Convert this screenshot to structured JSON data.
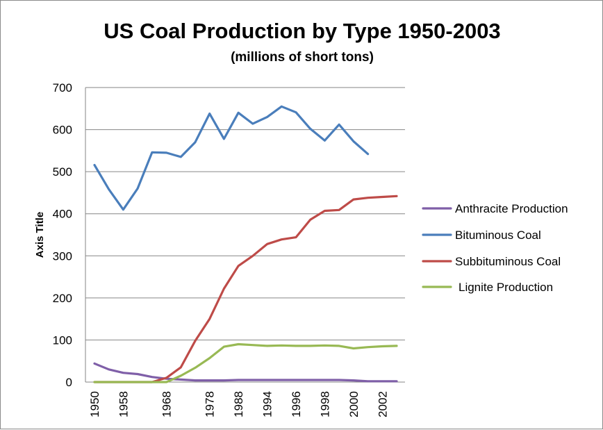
{
  "chart_data": {
    "type": "line",
    "title": "US Coal Production by Type 1950-2003",
    "subtitle": "(millions of short tons)",
    "xlabel": "",
    "ylabel": "Axis Title",
    "ylim": [
      0,
      700
    ],
    "yticks": [
      "0",
      "100",
      "200",
      "300",
      "400",
      "500",
      "600",
      "700"
    ],
    "x": [
      "1950",
      "1954",
      "1958",
      "1962",
      "1966",
      "1968",
      "1970",
      "1974",
      "1978",
      "1983",
      "1988",
      "1991",
      "1994",
      "1995",
      "1996",
      "1997",
      "1998",
      "1999",
      "2000",
      "2001",
      "2002",
      "2003"
    ],
    "x_tick_labels": [
      "1950",
      "",
      "1958",
      "",
      "",
      "1968",
      "",
      "",
      "1978",
      "",
      "1988",
      "",
      "1994",
      "",
      "1996",
      "",
      "1998",
      "",
      "2000",
      "",
      "2002",
      ""
    ],
    "grid": true,
    "legend_position": "right",
    "series": [
      {
        "name": "Anthracite Production",
        "color": "#7F5FA8",
        "values": [
          44,
          30,
          22,
          19,
          12,
          8,
          6,
          4,
          4,
          4,
          5,
          5,
          5,
          5,
          5,
          5,
          5,
          5,
          4,
          2,
          2,
          2
        ]
      },
      {
        "name": "Bituminous Coal",
        "color": "#4A7EBB",
        "values": [
          516,
          458,
          410,
          460,
          546,
          545,
          535,
          570,
          638,
          578,
          640,
          614,
          630,
          655,
          641,
          602,
          574,
          612,
          572,
          542,
          null,
          null
        ]
      },
      {
        "name": "Subbituminous Coal",
        "color": "#BE4B48",
        "values": [
          0,
          0,
          0,
          0,
          0,
          10,
          35,
          98,
          150,
          222,
          276,
          300,
          328,
          339,
          344,
          386,
          407,
          409,
          434,
          438,
          440,
          442
        ]
      },
      {
        "name": "Lignite Production",
        "color": "#98B954",
        "values": [
          0,
          0,
          0,
          0,
          0,
          0,
          15,
          34,
          57,
          84,
          90,
          88,
          86,
          87,
          86,
          86,
          87,
          86,
          80,
          83,
          85,
          86
        ]
      }
    ]
  }
}
